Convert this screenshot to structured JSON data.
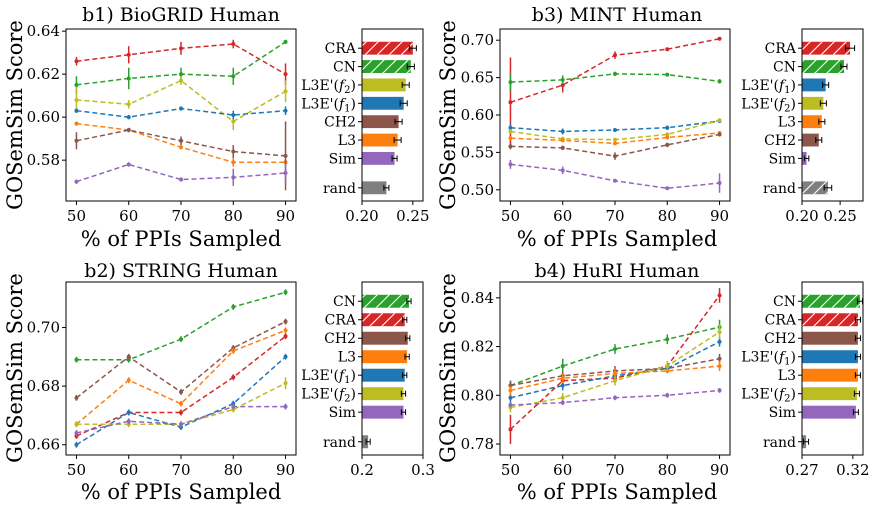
{
  "chart_data": [
    {
      "id": "b1",
      "type": "line",
      "title": "b1) BioGRID Human",
      "xlabel": "% of PPIs Sampled",
      "ylabel": "GOSemSim Score",
      "x": [
        50,
        60,
        70,
        80,
        90
      ],
      "xticks": [
        "50",
        "60",
        "70",
        "80",
        "90"
      ],
      "ylim": [
        0.561,
        0.641
      ],
      "yticks": [
        0.58,
        0.6,
        0.62,
        0.64
      ],
      "yticklabels": [
        "0.58",
        "0.60",
        "0.62",
        "0.64"
      ],
      "series": [
        {
          "method": "CRA",
          "color": "#d62728",
          "values": [
            0.626,
            0.629,
            0.632,
            0.634,
            0.62
          ],
          "errors": [
            0.002,
            0.004,
            0.003,
            0.002,
            0.005
          ]
        },
        {
          "method": "CN",
          "color": "#2ca02c",
          "values": [
            0.615,
            0.618,
            0.62,
            0.619,
            0.635
          ],
          "errors": [
            0.004,
            0.005,
            0.003,
            0.004,
            0.001
          ]
        },
        {
          "method": "L3E'(f2)",
          "color": "#bcbd22",
          "values": [
            0.608,
            0.606,
            0.617,
            0.598,
            0.612
          ],
          "errors": [
            0.006,
            0.002,
            0.002,
            0.004,
            0.005
          ]
        },
        {
          "method": "L3E'(f1)",
          "color": "#1f77b4",
          "values": [
            0.603,
            0.6,
            0.604,
            0.601,
            0.603
          ],
          "errors": [
            0.001,
            0.001,
            0.001,
            0.002,
            0.002
          ]
        },
        {
          "method": "L3",
          "color": "#ff7f0e",
          "values": [
            0.597,
            0.594,
            0.586,
            0.579,
            0.579
          ],
          "errors": [
            0.001,
            0.001,
            0.001,
            0.002,
            0.001
          ]
        },
        {
          "method": "CH2",
          "color": "#8c564b",
          "values": [
            0.589,
            0.594,
            0.589,
            0.584,
            0.582
          ],
          "errors": [
            0.004,
            0.001,
            0.002,
            0.003,
            0.016
          ]
        },
        {
          "method": "Sim",
          "color": "#9467bd",
          "values": [
            0.57,
            0.578,
            0.571,
            0.572,
            0.574
          ],
          "errors": [
            0.001,
            0.001,
            0.001,
            0.004,
            0.005
          ]
        }
      ]
    },
    {
      "id": "b1-bar",
      "type": "bar",
      "orientation": "horizontal",
      "xlim": [
        0.2,
        0.26
      ],
      "xticks": [
        0.2,
        0.25
      ],
      "xticklabels": [
        "0.20",
        "0.25"
      ],
      "categories": [
        "CRA",
        "CN",
        "L3E'(f2)",
        "L3E'(f1)",
        "CH2",
        "L3",
        "Sim",
        "rand"
      ],
      "values": [
        0.25,
        0.248,
        0.243,
        0.241,
        0.236,
        0.235,
        0.232,
        0.224
      ],
      "errors": [
        0.002,
        0.002,
        0.002,
        0.002,
        0.002,
        0.002,
        0.001,
        0.001
      ],
      "colors": [
        "#d62728",
        "#2ca02c",
        "#bcbd22",
        "#1f77b4",
        "#8c564b",
        "#ff7f0e",
        "#9467bd",
        "#7f7f7f"
      ],
      "hatched": [
        true,
        true,
        false,
        false,
        false,
        false,
        false,
        false
      ]
    },
    {
      "id": "b3",
      "type": "line",
      "title": "b3) MINT Human",
      "xlabel": "% of PPIs Sampled",
      "ylabel": "GOSemSim Score",
      "x": [
        50,
        60,
        70,
        80,
        90
      ],
      "xticks": [
        "50",
        "60",
        "70",
        "80",
        "90"
      ],
      "ylim": [
        0.485,
        0.715
      ],
      "yticks": [
        0.5,
        0.55,
        0.6,
        0.65,
        0.7
      ],
      "yticklabels": [
        "0.50",
        "0.55",
        "0.60",
        "0.65",
        "0.70"
      ],
      "series": [
        {
          "method": "CRA",
          "color": "#d62728",
          "values": [
            0.617,
            0.64,
            0.68,
            0.688,
            0.702
          ],
          "errors": [
            0.06,
            0.01,
            0.005,
            0.002,
            0.002
          ]
        },
        {
          "method": "CN",
          "color": "#2ca02c",
          "values": [
            0.644,
            0.647,
            0.655,
            0.654,
            0.645
          ],
          "errors": [
            0.012,
            0.006,
            0.003,
            0.002,
            0.003
          ]
        },
        {
          "method": "L3E'(f1)",
          "color": "#1f77b4",
          "values": [
            0.583,
            0.578,
            0.58,
            0.583,
            0.592
          ],
          "errors": [
            0.005,
            0.004,
            0.002,
            0.003,
            0.002
          ]
        },
        {
          "method": "L3E'(f2)",
          "color": "#bcbd22",
          "values": [
            0.578,
            0.568,
            0.567,
            0.574,
            0.593
          ],
          "errors": [
            0.003,
            0.003,
            0.002,
            0.003,
            0.002
          ]
        },
        {
          "method": "L3",
          "color": "#ff7f0e",
          "values": [
            0.569,
            0.566,
            0.562,
            0.57,
            0.576
          ],
          "errors": [
            0.003,
            0.002,
            0.002,
            0.002,
            0.002
          ]
        },
        {
          "method": "CH2",
          "color": "#8c564b",
          "values": [
            0.558,
            0.556,
            0.545,
            0.56,
            0.574
          ],
          "errors": [
            0.004,
            0.003,
            0.005,
            0.003,
            0.002
          ]
        },
        {
          "method": "Sim",
          "color": "#9467bd",
          "values": [
            0.534,
            0.526,
            0.512,
            0.502,
            0.509
          ],
          "errors": [
            0.006,
            0.005,
            0.002,
            0.002,
            0.013
          ]
        }
      ]
    },
    {
      "id": "b3-bar",
      "type": "bar",
      "orientation": "horizontal",
      "xlim": [
        0.2,
        0.28
      ],
      "xticks": [
        0.2,
        0.25
      ],
      "xticklabels": [
        "0.20",
        "0.25"
      ],
      "categories": [
        "CRA",
        "CN",
        "L3E'(f1)",
        "L3E'(f2)",
        "L3",
        "CH2",
        "Sim",
        "rand"
      ],
      "values": [
        0.263,
        0.255,
        0.231,
        0.228,
        0.226,
        0.222,
        0.206,
        0.234
      ],
      "errors": [
        0.004,
        0.002,
        0.002,
        0.002,
        0.002,
        0.002,
        0.001,
        0.003
      ],
      "colors": [
        "#d62728",
        "#2ca02c",
        "#1f77b4",
        "#bcbd22",
        "#ff7f0e",
        "#8c564b",
        "#9467bd",
        "#7f7f7f"
      ],
      "hatched": [
        true,
        true,
        false,
        false,
        false,
        false,
        false,
        true
      ]
    },
    {
      "id": "b2",
      "type": "line",
      "title": "b2) STRING Human",
      "xlabel": "% of PPIs Sampled",
      "ylabel": "GOSemSim Score",
      "x": [
        50,
        60,
        70,
        80,
        90
      ],
      "xticks": [
        "50",
        "60",
        "70",
        "80",
        "90"
      ],
      "ylim": [
        0.6565,
        0.7155
      ],
      "yticks": [
        0.66,
        0.68,
        0.7
      ],
      "yticklabels": [
        "0.66",
        "0.68",
        "0.70"
      ],
      "series": [
        {
          "method": "CN",
          "color": "#2ca02c",
          "values": [
            0.689,
            0.689,
            0.696,
            0.707,
            0.712
          ],
          "errors": [
            0.001,
            0.001,
            0.001,
            0.001,
            0.001
          ]
        },
        {
          "method": "CRA",
          "color": "#d62728",
          "values": [
            0.663,
            0.671,
            0.671,
            0.683,
            0.697
          ],
          "errors": [
            0.001,
            0.001,
            0.001,
            0.001,
            0.001
          ]
        },
        {
          "method": "CH2",
          "color": "#8c564b",
          "values": [
            0.676,
            0.69,
            0.678,
            0.693,
            0.702
          ],
          "errors": [
            0.001,
            0.001,
            0.001,
            0.001,
            0.001
          ]
        },
        {
          "method": "L3",
          "color": "#ff7f0e",
          "values": [
            0.667,
            0.682,
            0.674,
            0.692,
            0.699
          ],
          "errors": [
            0.001,
            0.001,
            0.001,
            0.001,
            0.001
          ]
        },
        {
          "method": "L3E'(f1)",
          "color": "#1f77b4",
          "values": [
            0.66,
            0.671,
            0.666,
            0.674,
            0.69
          ],
          "errors": [
            0.001,
            0.001,
            0.001,
            0.001,
            0.001
          ]
        },
        {
          "method": "L3E'(f2)",
          "color": "#bcbd22",
          "values": [
            0.667,
            0.667,
            0.667,
            0.672,
            0.681
          ],
          "errors": [
            0.001,
            0.001,
            0.001,
            0.001,
            0.002
          ]
        },
        {
          "method": "Sim",
          "color": "#9467bd",
          "values": [
            0.664,
            0.668,
            0.667,
            0.673,
            0.673
          ],
          "errors": [
            0.001,
            0.001,
            0.001,
            0.001,
            0.001
          ]
        }
      ]
    },
    {
      "id": "b2-bar",
      "type": "bar",
      "orientation": "horizontal",
      "xlim": [
        0.2,
        0.3
      ],
      "xticks": [
        0.2,
        0.3
      ],
      "xticklabels": [
        "0.2",
        "0.3"
      ],
      "categories": [
        "CN",
        "CRA",
        "CH2",
        "L3",
        "L3E'(f1)",
        "L3E'(f2)",
        "Sim",
        "rand"
      ],
      "values": [
        0.277,
        0.27,
        0.275,
        0.274,
        0.27,
        0.268,
        0.268,
        0.21
      ],
      "errors": [
        0.001,
        0.001,
        0.001,
        0.001,
        0.001,
        0.001,
        0.001,
        0.001
      ],
      "colors": [
        "#2ca02c",
        "#d62728",
        "#8c564b",
        "#ff7f0e",
        "#1f77b4",
        "#bcbd22",
        "#9467bd",
        "#7f7f7f"
      ],
      "hatched": [
        true,
        true,
        false,
        false,
        false,
        false,
        false,
        false
      ]
    },
    {
      "id": "b4",
      "type": "line",
      "title": "b4) HuRI Human",
      "xlabel": "% of PPIs Sampled",
      "ylabel": "GOSemSim Score",
      "x": [
        50,
        60,
        70,
        80,
        90
      ],
      "xticks": [
        "50",
        "60",
        "70",
        "80",
        "90"
      ],
      "ylim": [
        0.7755,
        0.8465
      ],
      "yticks": [
        0.78,
        0.8,
        0.82,
        0.84
      ],
      "yticklabels": [
        "0.78",
        "0.80",
        "0.82",
        "0.84"
      ],
      "series": [
        {
          "method": "CN",
          "color": "#2ca02c",
          "values": [
            0.804,
            0.812,
            0.819,
            0.823,
            0.828
          ],
          "errors": [
            0.002,
            0.003,
            0.002,
            0.002,
            0.003
          ]
        },
        {
          "method": "CRA",
          "color": "#d62728",
          "values": [
            0.786,
            0.806,
            0.807,
            0.812,
            0.841
          ],
          "errors": [
            0.006,
            0.002,
            0.002,
            0.002,
            0.003
          ]
        },
        {
          "method": "CH2",
          "color": "#8c564b",
          "values": [
            0.804,
            0.808,
            0.81,
            0.811,
            0.815
          ],
          "errors": [
            0.002,
            0.002,
            0.002,
            0.001,
            0.002
          ]
        },
        {
          "method": "L3E'(f1)",
          "color": "#1f77b4",
          "values": [
            0.799,
            0.804,
            0.808,
            0.811,
            0.822
          ],
          "errors": [
            0.002,
            0.002,
            0.002,
            0.001,
            0.002
          ]
        },
        {
          "method": "L3",
          "color": "#ff7f0e",
          "values": [
            0.802,
            0.807,
            0.809,
            0.81,
            0.812
          ],
          "errors": [
            0.002,
            0.002,
            0.002,
            0.001,
            0.002
          ]
        },
        {
          "method": "L3E'(f2)",
          "color": "#bcbd22",
          "values": [
            0.795,
            0.799,
            0.806,
            0.812,
            0.826
          ],
          "errors": [
            0.002,
            0.002,
            0.002,
            0.002,
            0.003
          ]
        },
        {
          "method": "Sim",
          "color": "#9467bd",
          "values": [
            0.796,
            0.797,
            0.799,
            0.8,
            0.802
          ],
          "errors": [
            0.001,
            0.001,
            0.001,
            0.001,
            0.001
          ]
        }
      ]
    },
    {
      "id": "b4-bar",
      "type": "bar",
      "orientation": "horizontal",
      "xlim": [
        0.27,
        0.33
      ],
      "xticks": [
        0.27,
        0.32
      ],
      "xticklabels": [
        "0.27",
        "0.32"
      ],
      "categories": [
        "CN",
        "CRA",
        "CH2",
        "L3E'(f1)",
        "L3",
        "L3E'(f2)",
        "Sim",
        "rand"
      ],
      "values": [
        0.327,
        0.325,
        0.325,
        0.325,
        0.325,
        0.324,
        0.323,
        0.274
      ],
      "errors": [
        0.001,
        0.001,
        0.001,
        0.001,
        0.001,
        0.001,
        0.001,
        0.001
      ],
      "colors": [
        "#2ca02c",
        "#d62728",
        "#8c564b",
        "#1f77b4",
        "#ff7f0e",
        "#bcbd22",
        "#9467bd",
        "#7f7f7f"
      ],
      "hatched": [
        true,
        true,
        false,
        false,
        false,
        false,
        false,
        false
      ]
    }
  ]
}
